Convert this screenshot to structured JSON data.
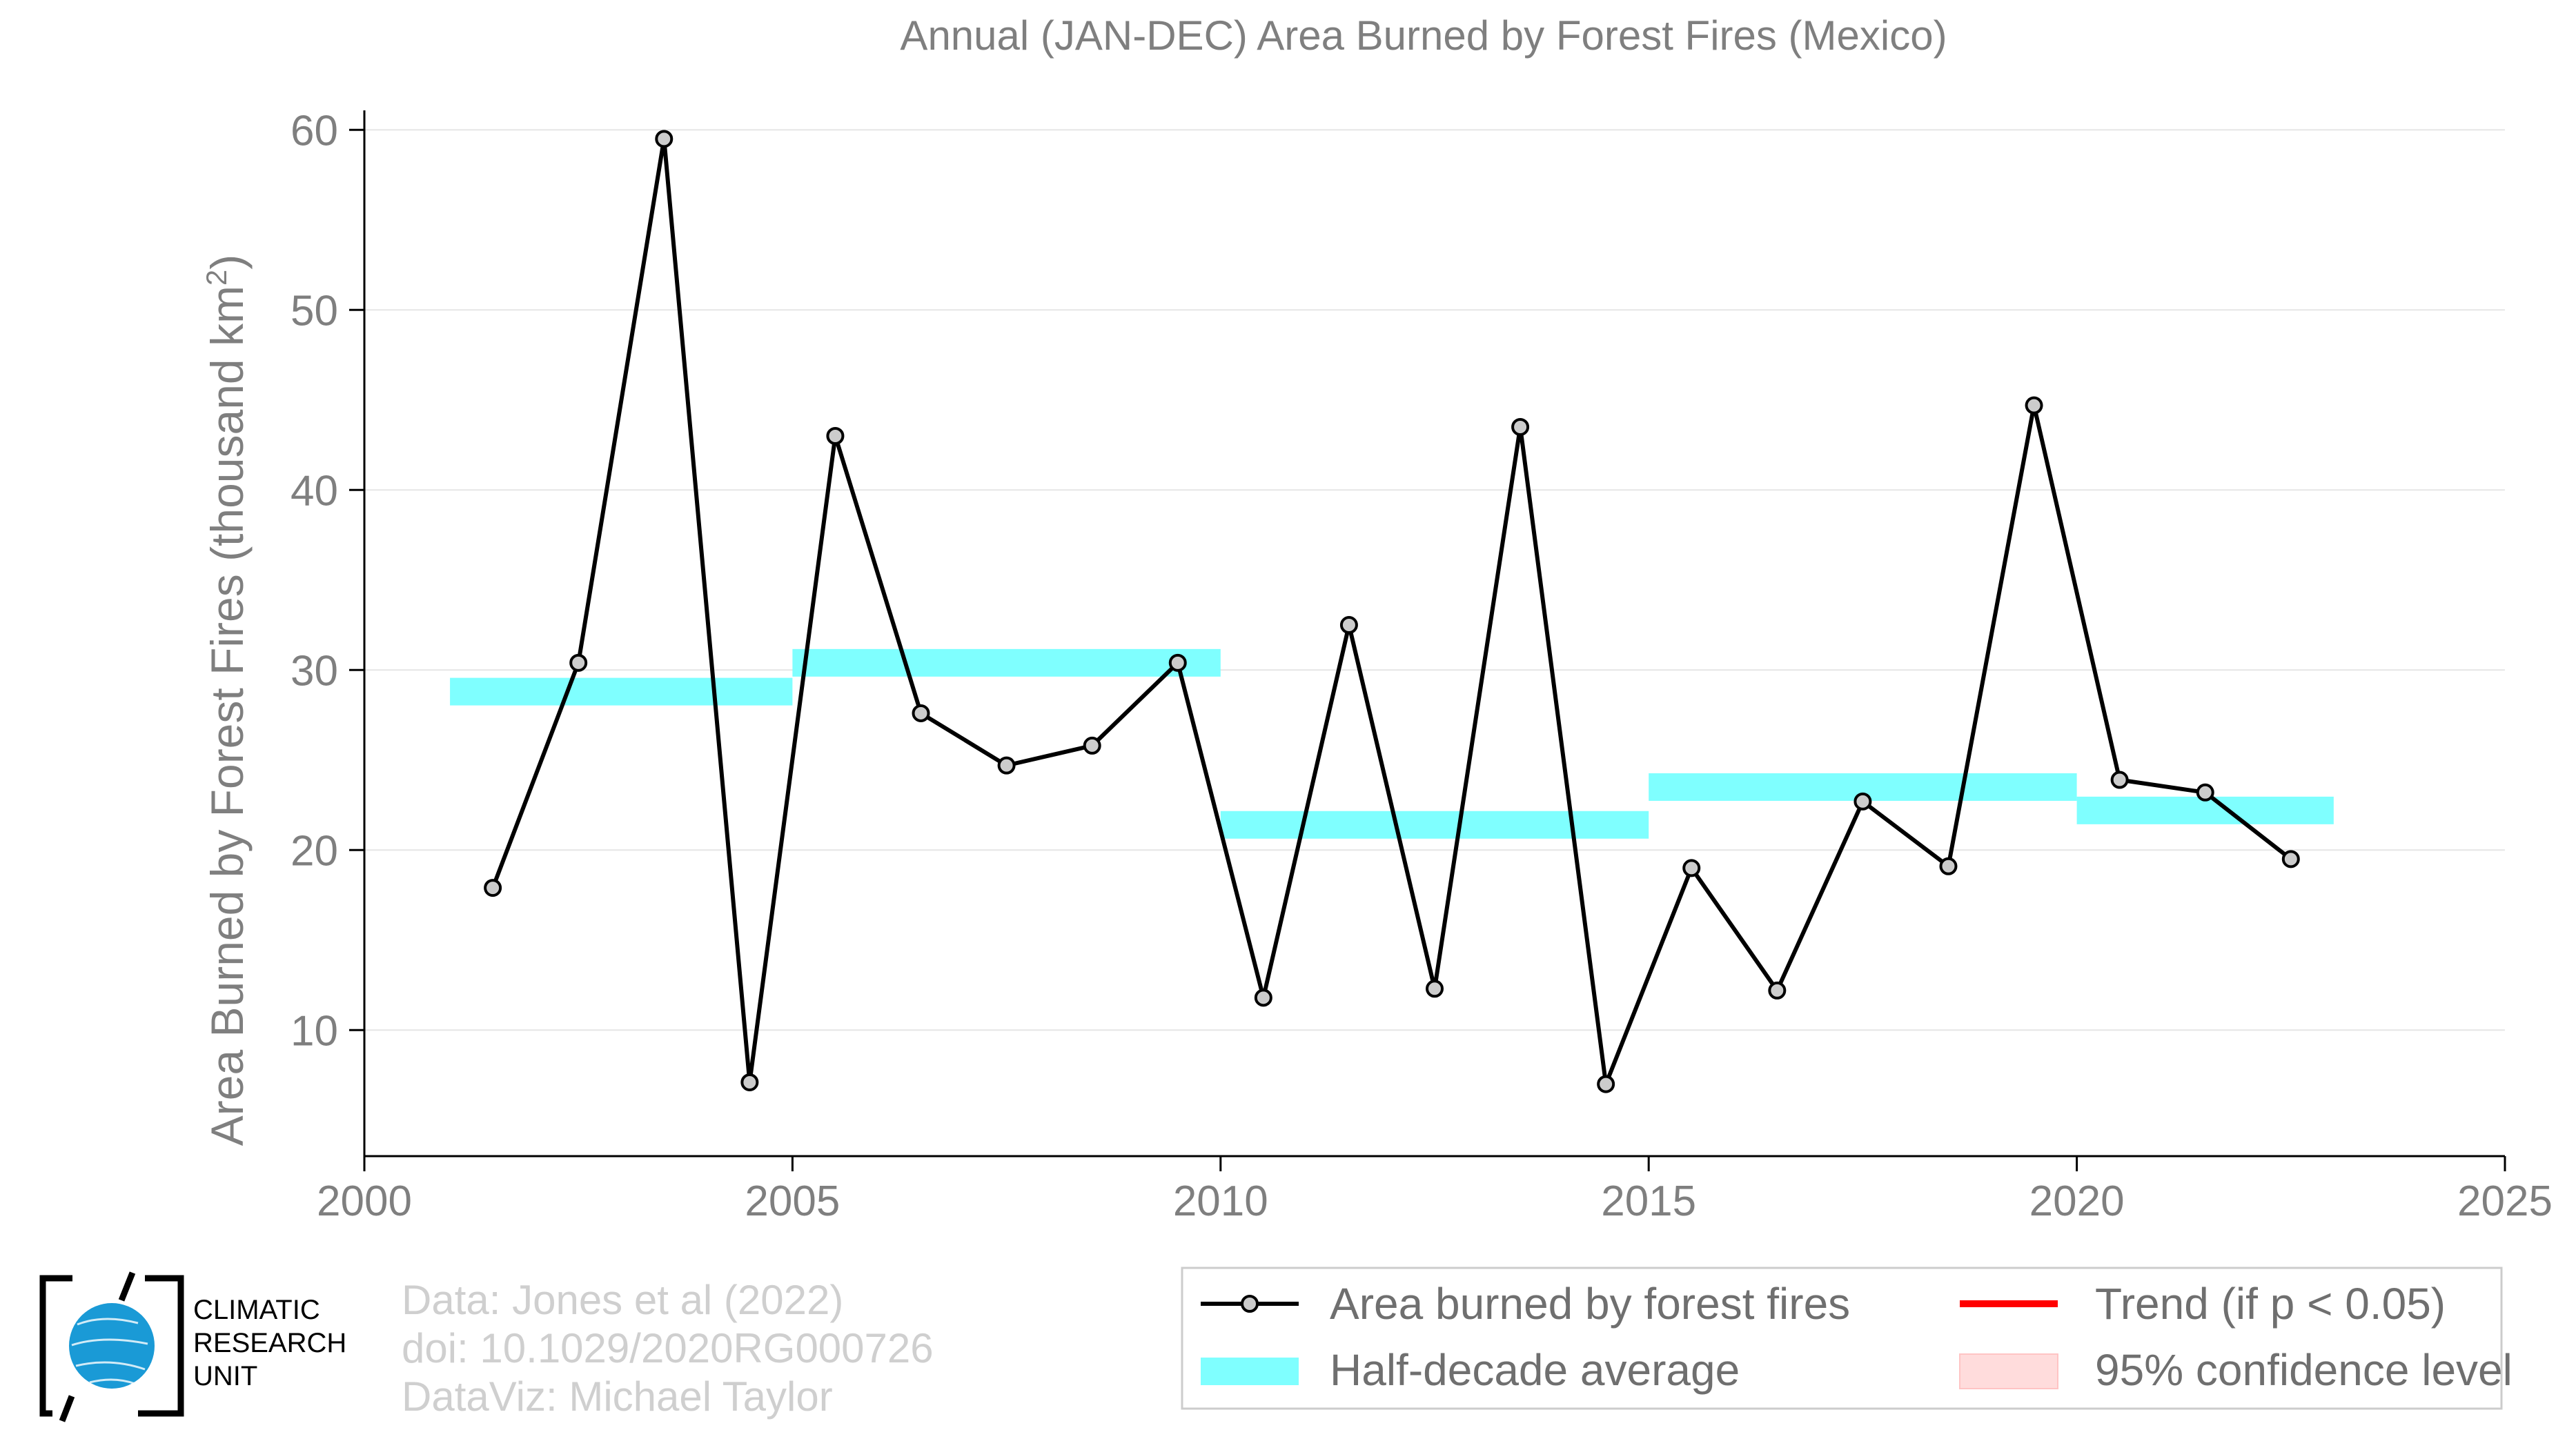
{
  "chart_data": {
    "type": "line",
    "title": "Annual (JAN-DEC) Area Burned by Forest Fires (Mexico)",
    "xlabel": "",
    "ylabel": "Area Burned by Forest Fires (thousand km",
    "ylabel_sup": "2",
    "ylabel_close": ")",
    "xlim": [
      2000,
      2025
    ],
    "ylim": [
      3,
      63
    ],
    "xticks": [
      2000,
      2005,
      2010,
      2015,
      2020,
      2025
    ],
    "yticks": [
      10,
      20,
      30,
      40,
      50,
      60
    ],
    "grid": "horizontal",
    "legend_position": "bottom-right",
    "series": [
      {
        "name": "Area burned by forest fires",
        "color": "#000000",
        "marker_fill": "#cccccc",
        "x": [
          2001.5,
          2002.5,
          2003.5,
          2004.5,
          2005.5,
          2006.5,
          2007.5,
          2008.5,
          2009.5,
          2010.5,
          2011.5,
          2012.5,
          2013.5,
          2014.5,
          2015.5,
          2016.5,
          2017.5,
          2018.5,
          2019.5,
          2020.5,
          2021.5,
          2022.5
        ],
        "y": [
          17.9,
          30.4,
          59.5,
          7.1,
          43.0,
          27.6,
          24.7,
          25.8,
          30.4,
          11.8,
          32.5,
          12.3,
          43.5,
          7.0,
          19.0,
          12.2,
          22.7,
          19.1,
          44.7,
          23.9,
          23.2,
          19.5
        ]
      }
    ],
    "half_decade_average": {
      "name": "Half-decade average",
      "color": "#7fffff",
      "bars": [
        {
          "x_start": 2001,
          "x_end": 2005,
          "value": 28.8
        },
        {
          "x_start": 2005,
          "x_end": 2010,
          "value": 30.4
        },
        {
          "x_start": 2010,
          "x_end": 2015,
          "value": 21.4
        },
        {
          "x_start": 2015,
          "x_end": 2020,
          "value": 23.5
        },
        {
          "x_start": 2020,
          "x_end": 2023,
          "value": 22.2
        }
      ]
    },
    "legend": [
      {
        "label": "Area burned by forest fires",
        "kind": "line-marker",
        "color": "#000000"
      },
      {
        "label": "Trend (if p < 0.05)",
        "kind": "line",
        "color": "#ff0000"
      },
      {
        "label": "Half-decade average",
        "kind": "band",
        "color": "#7fffff"
      },
      {
        "label": "95% confidence level",
        "kind": "band",
        "color": "#ffdcdc"
      }
    ]
  },
  "credits": {
    "line1": "Data: Jones et al (2022)",
    "line2": "doi: 10.1029/2020RG000726",
    "line3": "DataViz: Michael Taylor"
  },
  "logo": {
    "line1": "CLIMATIC",
    "line2": "RESEARCH",
    "line3": "UNIT",
    "globe_color": "#1a9ad6"
  }
}
